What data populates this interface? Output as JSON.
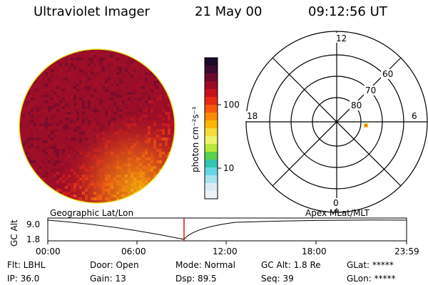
{
  "header": {
    "title": "Ultraviolet Imager",
    "date": "21 May 00",
    "time": "09:12:56 UT"
  },
  "colorbar": {
    "label": "photon cm⁻²s⁻¹",
    "ticks": [
      "100",
      "10"
    ],
    "colors": [
      "#1c0a2a",
      "#3a0c32",
      "#6b0a2c",
      "#9b0b26",
      "#c5101e",
      "#e62a14",
      "#f45a0a",
      "#fa8c05",
      "#fbb800",
      "#f6dc3a",
      "#ecf46a",
      "#b9e83a",
      "#5ad34a",
      "#33c3b0",
      "#69d6e6",
      "#a8e2ee",
      "#d9ecf2",
      "#eef4f8"
    ]
  },
  "polar": {
    "labels": {
      "top": "12",
      "left": "18",
      "right": "6",
      "bottom": "0"
    },
    "rings": [
      "80",
      "70",
      "60"
    ]
  },
  "timeline": {
    "left_title": "Geographic Lat/Lon",
    "right_title": "Apex MLat/MLT",
    "y_axis_label": "GC Alt",
    "y_ticks": [
      "9.0",
      "1.8"
    ],
    "x_ticks": [
      "00:00",
      "06:00",
      "12:00",
      "18:00",
      "23:59"
    ]
  },
  "footer": {
    "flt": "Flt: LBHL",
    "ip": "IP: 36.0",
    "door": "Door: Open",
    "gain": "Gain: 13",
    "mode": "Mode: Normal",
    "dsp": "Dsp:   89.5",
    "gcalt": "GC Alt: 1.8 Re",
    "seq": "Seq: 39",
    "glat": "GLat: *****",
    "glon": "GLon: *****"
  }
}
